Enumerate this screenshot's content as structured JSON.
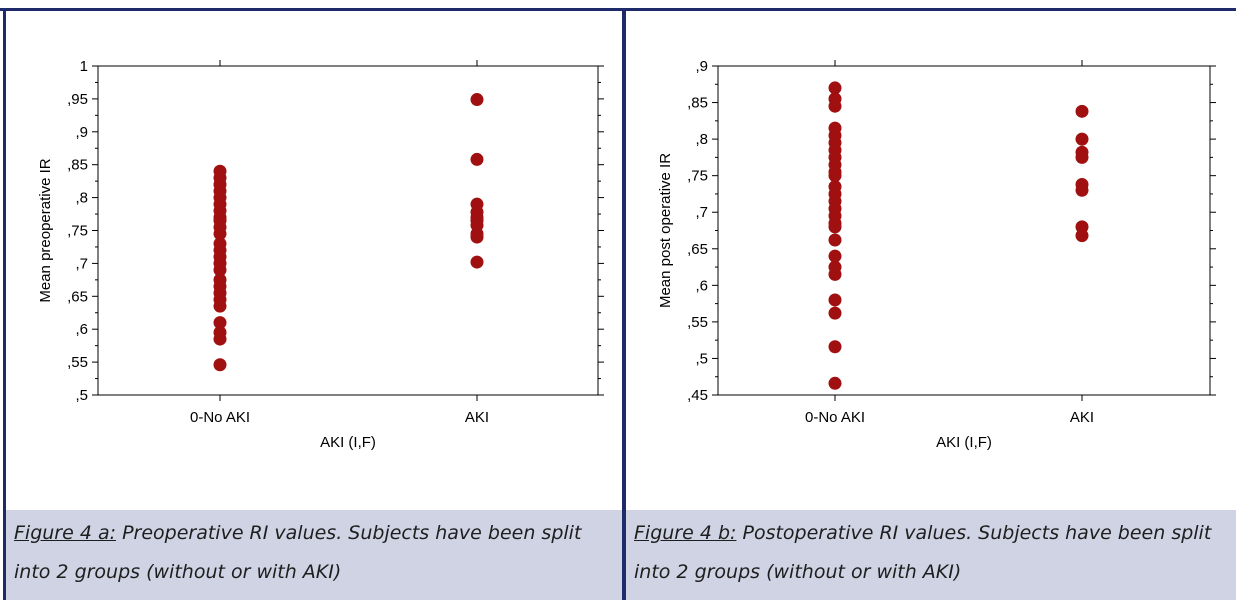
{
  "panels": [
    {
      "caption_label": "Figure 4 a:",
      "caption_text": " Preoperative RI values. Subjects have been split into 2 groups (without or with AKI)"
    },
    {
      "caption_label": "Figure 4 b:",
      "caption_text": " Postoperative RI values. Subjects have been split into 2 groups (without or with AKI)"
    }
  ],
  "chart_data": [
    {
      "type": "scatter",
      "title": "",
      "xlabel": "AKI (I,F)",
      "ylabel": "Mean preoperative IR",
      "categories": [
        "0-No AKI",
        "AKI"
      ],
      "ylim": [
        0.5,
        1.0
      ],
      "yticks": [
        0.5,
        0.55,
        0.6,
        0.65,
        0.7,
        0.75,
        0.8,
        0.85,
        0.9,
        0.95,
        1.0
      ],
      "ytick_labels": [
        ",5",
        ",55",
        ",6",
        ",65",
        ",7",
        ",75",
        ",8",
        ",85",
        ",9",
        ",95",
        "1"
      ],
      "marker_color": "#a01010",
      "series": [
        {
          "category": "0-No AKI",
          "values": [
            0.84,
            0.83,
            0.82,
            0.81,
            0.8,
            0.79,
            0.78,
            0.77,
            0.765,
            0.755,
            0.745,
            0.73,
            0.72,
            0.71,
            0.7,
            0.69,
            0.675,
            0.665,
            0.655,
            0.645,
            0.635,
            0.61,
            0.595,
            0.585,
            0.546
          ]
        },
        {
          "category": "AKI",
          "values": [
            0.949,
            0.858,
            0.79,
            0.778,
            0.77,
            0.765,
            0.758,
            0.745,
            0.74,
            0.702
          ]
        }
      ]
    },
    {
      "type": "scatter",
      "title": "",
      "xlabel": "AKI (I,F)",
      "ylabel": "Mean post operative IR",
      "categories": [
        "0-No AKI",
        "AKI"
      ],
      "ylim": [
        0.45,
        0.9
      ],
      "yticks": [
        0.45,
        0.5,
        0.55,
        0.6,
        0.65,
        0.7,
        0.75,
        0.8,
        0.85,
        0.9
      ],
      "ytick_labels": [
        ",45",
        ",5",
        ",55",
        ",6",
        ",65",
        ",7",
        ",75",
        ",8",
        ",85",
        ",9"
      ],
      "marker_color": "#a01010",
      "series": [
        {
          "category": "0-No AKI",
          "values": [
            0.87,
            0.855,
            0.845,
            0.815,
            0.805,
            0.795,
            0.785,
            0.775,
            0.765,
            0.755,
            0.75,
            0.735,
            0.725,
            0.715,
            0.705,
            0.695,
            0.685,
            0.68,
            0.662,
            0.64,
            0.625,
            0.615,
            0.58,
            0.562,
            0.516,
            0.466
          ]
        },
        {
          "category": "AKI",
          "values": [
            0.838,
            0.8,
            0.782,
            0.775,
            0.738,
            0.73,
            0.68,
            0.668
          ]
        }
      ]
    }
  ]
}
